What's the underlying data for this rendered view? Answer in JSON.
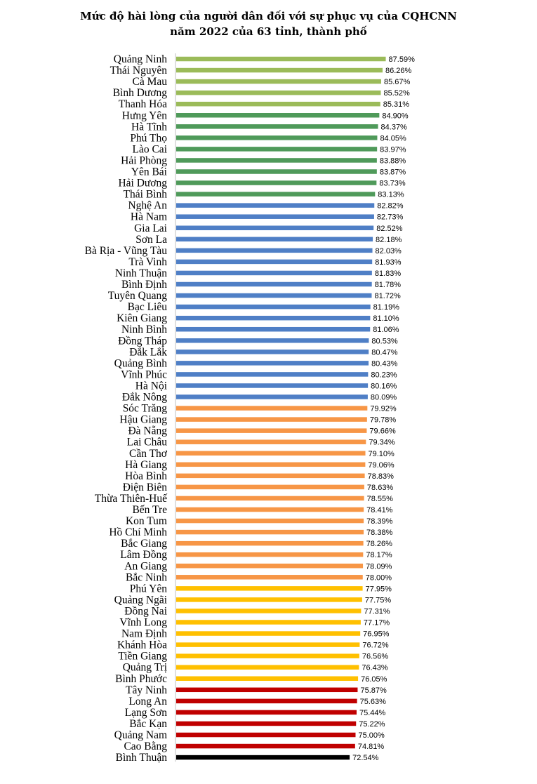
{
  "chart_data": {
    "type": "bar",
    "orientation": "horizontal",
    "title_line1": "Mức độ hài lòng của người dân đối với sự phục vụ của CQHCNN",
    "title_line2": "năm 2022 của 63 tỉnh, thành phố",
    "value_suffix": "%",
    "xlim": [
      0,
      100
    ],
    "colors": {
      "light_green": "#9bbb59",
      "green": "#4f9a5a",
      "blue": "#4f7fc6",
      "orange": "#f79646",
      "yellow": "#ffc000",
      "red": "#c00000",
      "black": "#000000"
    },
    "categories": [
      "Quảng Ninh",
      "Thái Nguyên",
      "Cà Mau",
      "Bình Dương",
      "Thanh Hóa",
      "Hưng Yên",
      "Hà Tĩnh",
      "Phú Thọ",
      "Lào Cai",
      "Hải Phòng",
      "Yên Bái",
      "Hải Dương",
      "Thái Bình",
      "Nghệ An",
      "Hà Nam",
      "Gia Lai",
      "Sơn La",
      "Bà Rịa - Vũng Tàu",
      "Trà Vinh",
      "Ninh Thuận",
      "Bình Định",
      "Tuyên Quang",
      "Bạc Liêu",
      "Kiên Giang",
      "Ninh Bình",
      "Đồng Tháp",
      "Đắk Lắk",
      "Quảng Bình",
      "Vĩnh Phúc",
      "Hà Nội",
      "Đắk Nông",
      "Sóc Trăng",
      "Hậu Giang",
      "Đà Nẵng",
      "Lai Châu",
      "Cần Thơ",
      "Hà Giang",
      "Hòa Bình",
      "Điện Biên",
      "Thừa Thiên-Huế",
      "Bến Tre",
      "Kon Tum",
      "Hồ Chí Minh",
      "Bắc Giang",
      "Lâm Đồng",
      "An Giang",
      "Bắc Ninh",
      "Phú Yên",
      "Quảng Ngãi",
      "Đồng Nai",
      "Vĩnh Long",
      "Nam Định",
      "Khánh Hòa",
      "Tiền Giang",
      "Quảng Trị",
      "Bình Phước",
      "Tây Ninh",
      "Long An",
      "Lạng Sơn",
      "Bắc Kạn",
      "Quảng Nam",
      "Cao Bằng",
      "Bình Thuận"
    ],
    "values": [
      87.59,
      86.26,
      85.67,
      85.52,
      85.31,
      84.9,
      84.37,
      84.05,
      83.97,
      83.88,
      83.87,
      83.73,
      83.13,
      82.82,
      82.73,
      82.52,
      82.18,
      82.03,
      81.93,
      81.83,
      81.78,
      81.72,
      81.19,
      81.1,
      81.06,
      80.53,
      80.47,
      80.43,
      80.23,
      80.16,
      80.09,
      79.92,
      79.78,
      79.66,
      79.34,
      79.1,
      79.06,
      78.83,
      78.63,
      78.55,
      78.41,
      78.39,
      78.38,
      78.26,
      78.17,
      78.09,
      78.0,
      77.95,
      77.75,
      77.31,
      77.17,
      76.95,
      76.72,
      76.56,
      76.43,
      76.05,
      75.87,
      75.63,
      75.44,
      75.22,
      75.0,
      74.81,
      72.54
    ],
    "color_groups": [
      "light_green",
      "light_green",
      "light_green",
      "light_green",
      "light_green",
      "green",
      "green",
      "green",
      "green",
      "green",
      "green",
      "green",
      "green",
      "blue",
      "blue",
      "blue",
      "blue",
      "blue",
      "blue",
      "blue",
      "blue",
      "blue",
      "blue",
      "blue",
      "blue",
      "blue",
      "blue",
      "blue",
      "blue",
      "blue",
      "blue",
      "orange",
      "orange",
      "orange",
      "orange",
      "orange",
      "orange",
      "orange",
      "orange",
      "orange",
      "orange",
      "orange",
      "orange",
      "orange",
      "orange",
      "orange",
      "orange",
      "yellow",
      "yellow",
      "yellow",
      "yellow",
      "yellow",
      "yellow",
      "yellow",
      "yellow",
      "yellow",
      "red",
      "red",
      "red",
      "red",
      "red",
      "red",
      "black"
    ]
  }
}
